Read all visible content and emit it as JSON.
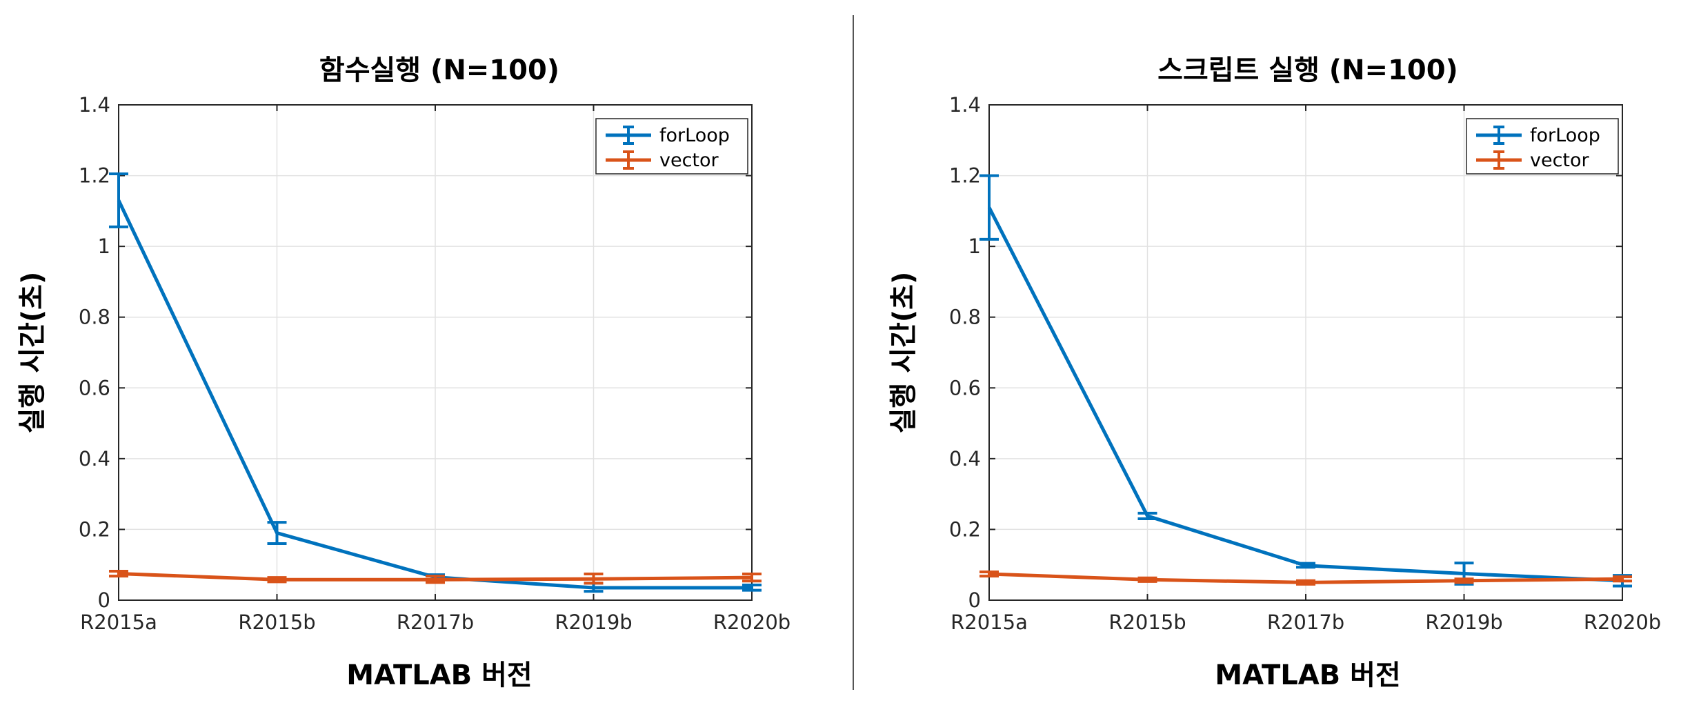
{
  "figure": {
    "divider": true
  },
  "chart_data": [
    {
      "type": "line",
      "title": "함수실행 (N=100)",
      "xlabel": "MATLAB 버전",
      "ylabel": "실행 시간(초)",
      "categories": [
        "R2015a",
        "R2015b",
        "R2017b",
        "R2019b",
        "R2020b"
      ],
      "ylim": [
        0,
        1.4
      ],
      "yticks": [
        0,
        0.2,
        0.4,
        0.6,
        0.8,
        1,
        1.2,
        1.4
      ],
      "ytick_labels": [
        "0",
        "0.2",
        "0.4",
        "0.6",
        "0.8",
        "1",
        "1.2",
        "1.4"
      ],
      "grid": true,
      "legend_position": "top-right",
      "error_bars": true,
      "series": [
        {
          "name": "forLoop",
          "color": "#0072BD",
          "values": [
            1.13,
            0.19,
            0.065,
            0.035,
            0.035
          ],
          "err_low": [
            1.055,
            0.16,
            0.058,
            0.025,
            0.028
          ],
          "err_high": [
            1.205,
            0.22,
            0.072,
            0.048,
            0.043
          ]
        },
        {
          "name": "vector",
          "color": "#D95319",
          "values": [
            0.075,
            0.058,
            0.058,
            0.06,
            0.064
          ],
          "err_low": [
            0.068,
            0.052,
            0.05,
            0.048,
            0.054
          ],
          "err_high": [
            0.082,
            0.064,
            0.068,
            0.074,
            0.074
          ]
        }
      ]
    },
    {
      "type": "line",
      "title": "스크립트 실행 (N=100)",
      "xlabel": "MATLAB 버전",
      "ylabel": "실행 시간(초)",
      "categories": [
        "R2015a",
        "R2015b",
        "R2017b",
        "R2019b",
        "R2020b"
      ],
      "ylim": [
        0,
        1.4
      ],
      "yticks": [
        0,
        0.2,
        0.4,
        0.6,
        0.8,
        1,
        1.2,
        1.4
      ],
      "ytick_labels": [
        "0",
        "0.2",
        "0.4",
        "0.6",
        "0.8",
        "1",
        "1.2",
        "1.4"
      ],
      "grid": true,
      "legend_position": "top-right",
      "error_bars": true,
      "series": [
        {
          "name": "forLoop",
          "color": "#0072BD",
          "values": [
            1.11,
            0.238,
            0.098,
            0.075,
            0.055
          ],
          "err_low": [
            1.02,
            0.23,
            0.093,
            0.045,
            0.04
          ],
          "err_high": [
            1.2,
            0.246,
            0.104,
            0.105,
            0.07
          ]
        },
        {
          "name": "vector",
          "color": "#D95319",
          "values": [
            0.074,
            0.058,
            0.05,
            0.055,
            0.06
          ],
          "err_low": [
            0.068,
            0.053,
            0.045,
            0.05,
            0.054
          ],
          "err_high": [
            0.08,
            0.063,
            0.055,
            0.06,
            0.066
          ]
        }
      ]
    }
  ]
}
